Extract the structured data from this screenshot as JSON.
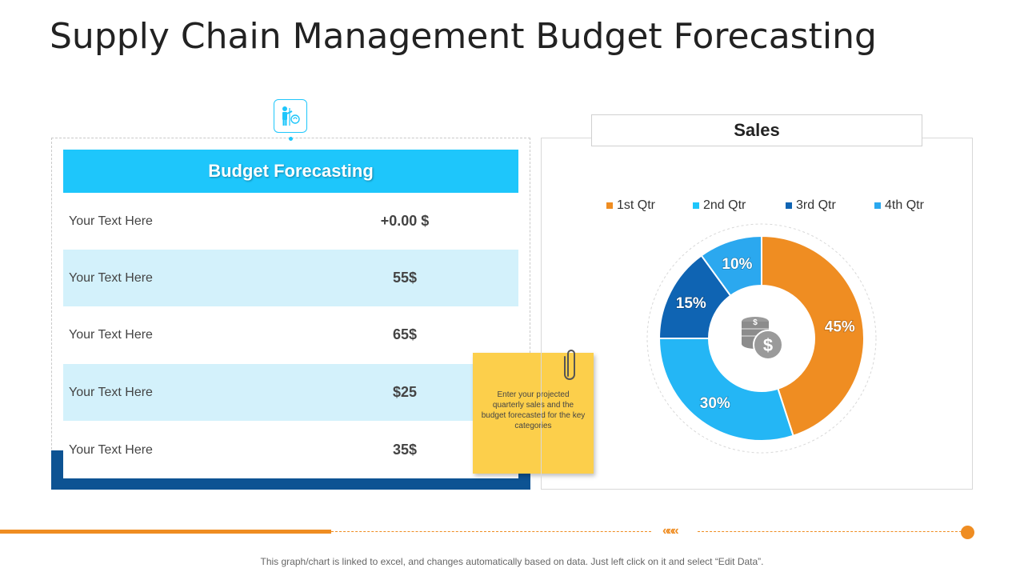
{
  "slide": {
    "title": "Supply Chain Management Budget Forecasting",
    "footer": "This graph/chart is linked to excel, and changes automatically based on data. Just left click on it and select “Edit Data”."
  },
  "budget_table": {
    "header": "Budget Forecasting",
    "rows": [
      {
        "label": "Your Text Here",
        "value": "+0.00 $"
      },
      {
        "label": "Your Text Here",
        "value": "55$"
      },
      {
        "label": "Your Text Here",
        "value": "65$"
      },
      {
        "label": "Your Text Here",
        "value": "$25"
      },
      {
        "label": "Your Text Here",
        "value": "35$"
      }
    ]
  },
  "sticky_note": {
    "text": "Enter your projected quarterly sales and the budget forecasted for the key categories"
  },
  "icons": {
    "header_icon": "person-presenting-icon",
    "center_icon": "coins-dollar-icon",
    "note_icon": "paperclip-icon"
  },
  "chart_data": {
    "type": "pie",
    "title": "Sales",
    "legend_position": "top",
    "categories": [
      "1st Qtr",
      "2nd Qtr",
      "3rd Qtr",
      "4th Qtr"
    ],
    "values": [
      45,
      30,
      15,
      10
    ],
    "labels": [
      "45%",
      "30%",
      "15%",
      "10%"
    ],
    "colors": [
      "#ef8d22",
      "#24b6f5",
      "#0f64b3",
      "#2ba8ef"
    ]
  },
  "legend_items": [
    {
      "label": "1st Qtr",
      "color": "#ef8d22"
    },
    {
      "label": "2nd Qtr",
      "color": "#1ec6fb"
    },
    {
      "label": "3rd Qtr",
      "color": "#0f64b3"
    },
    {
      "label": "4th Qtr",
      "color": "#2ba8ef"
    }
  ]
}
